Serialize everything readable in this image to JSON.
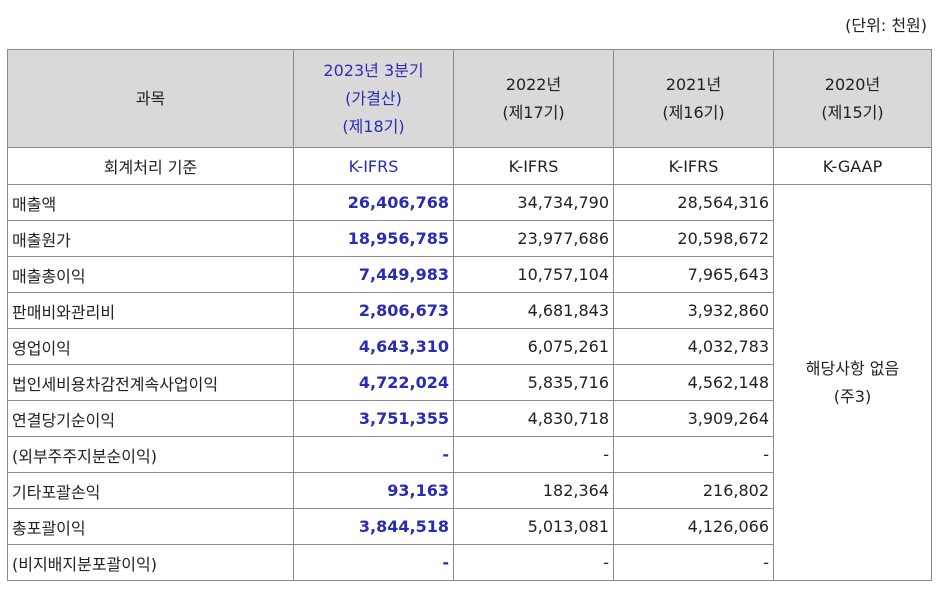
{
  "unit_note": "(단위: 천원)",
  "header": {
    "subject": "과목",
    "col_2023": [
      "2023년 3분기",
      "(가결산)",
      "(제18기)"
    ],
    "col_2022": [
      "2022년",
      "(제17기)"
    ],
    "col_2021": [
      "2021년",
      "(제16기)"
    ],
    "col_2020": [
      "2020년",
      "(제15기)"
    ]
  },
  "standards": {
    "label": "회계처리 기준",
    "values": [
      "K-IFRS",
      "K-IFRS",
      "K-IFRS",
      "K-GAAP"
    ]
  },
  "rows": [
    {
      "label": "매출액",
      "v2023": "26,406,768",
      "v2022": "34,734,790",
      "v2021": "28,564,316"
    },
    {
      "label": "매출원가",
      "v2023": "18,956,785",
      "v2022": "23,977,686",
      "v2021": "20,598,672"
    },
    {
      "label": "매출총이익",
      "v2023": "7,449,983",
      "v2022": "10,757,104",
      "v2021": "7,965,643"
    },
    {
      "label": "판매비와관리비",
      "v2023": "2,806,673",
      "v2022": "4,681,843",
      "v2021": "3,932,860"
    },
    {
      "label": "영업이익",
      "v2023": "4,643,310",
      "v2022": "6,075,261",
      "v2021": "4,032,783"
    },
    {
      "label": "법인세비용차감전계속사업이익",
      "v2023": "4,722,024",
      "v2022": "5,835,716",
      "v2021": "4,562,148"
    },
    {
      "label": "연결당기순이익",
      "v2023": "3,751,355",
      "v2022": "4,830,718",
      "v2021": "3,909,264"
    },
    {
      "label": "(외부주주지분순이익)",
      "v2023": "-",
      "v2022": "-",
      "v2021": "-"
    },
    {
      "label": "기타포괄손익",
      "v2023": "93,163",
      "v2022": "182,364",
      "v2021": "216,802"
    },
    {
      "label": "총포괄이익",
      "v2023": "3,844,518",
      "v2022": "5,013,081",
      "v2021": "4,126,066"
    },
    {
      "label": "(비지배지분포괄이익)",
      "v2023": "-",
      "v2022": "-",
      "v2021": "-"
    }
  ],
  "col_2020_note": [
    "해당사항 없음",
    "(주3)"
  ],
  "colors": {
    "header_bg": "#d9d9d9",
    "current_accent": "#2b2bb5",
    "border": "#8a8a8a"
  }
}
